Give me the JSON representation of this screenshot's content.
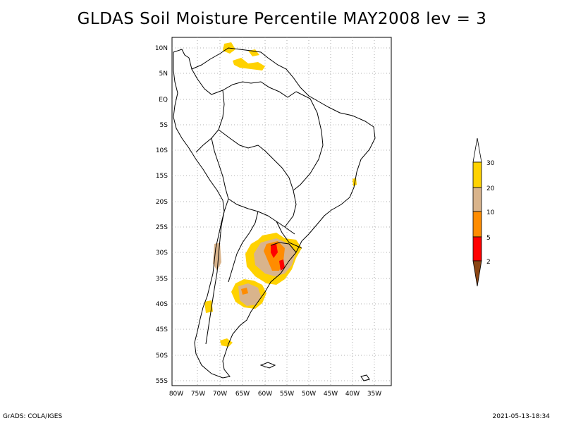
{
  "title": "GLDAS Soil Moisture Percentile MAY2008 lev = 3",
  "footer": {
    "left": "GrADS: COLA/IGES",
    "right": "2021-05-13-18:34"
  },
  "map": {
    "lon_labels": [
      "80W",
      "75W",
      "70W",
      "65W",
      "60W",
      "55W",
      "50W",
      "45W",
      "40W",
      "35W"
    ],
    "lat_labels": [
      "10N",
      "5N",
      "EQ",
      "5S",
      "10S",
      "15S",
      "20S",
      "25S",
      "30S",
      "35S",
      "40S",
      "45S",
      "50S",
      "55S"
    ]
  },
  "legend": {
    "levels": [
      "30",
      "20",
      "10",
      "5",
      "2"
    ],
    "colors": {
      "above_30": "#ffffff",
      "c20_30": "#ffd200",
      "c10_20": "#d9b48c",
      "c5_10": "#ff8c00",
      "c2_5": "#ff0000",
      "below_2": "#8b4513"
    }
  }
}
